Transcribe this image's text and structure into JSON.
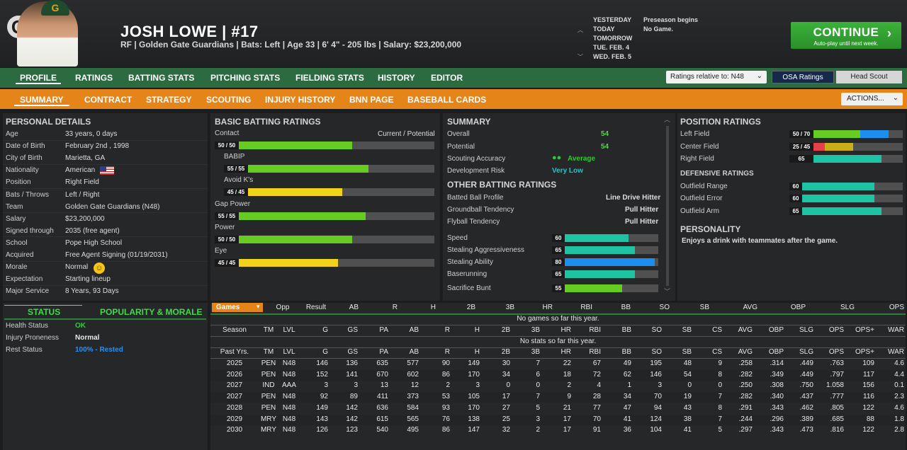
{
  "header": {
    "logo": "G",
    "cap_logo": "G",
    "name": "JOSH LOWE  |  #17",
    "info": "RF | Golden Gate Guardians  |  Bats: Left  |  Age 33  |  6' 4\"  - 205 lbs  |  Salary: $23,200,000"
  },
  "calendar": {
    "dates": [
      "YESTERDAY",
      "TODAY",
      "TOMORROW",
      "TUE. FEB. 4",
      "WED. FEB. 5"
    ],
    "events": [
      "Preseason begins",
      "No Game."
    ]
  },
  "continue": {
    "label": "CONTINUE",
    "sub": "Auto-play until next week."
  },
  "nav1": [
    "PROFILE",
    "RATINGS",
    "BATTING STATS",
    "PITCHING STATS",
    "FIELDING STATS",
    "HISTORY",
    "EDITOR"
  ],
  "ratings_relative": "Ratings relative to: N48",
  "osa": "OSA Ratings",
  "head_scout": "Head Scout",
  "nav2": [
    "SUMMARY",
    "CONTRACT",
    "STRATEGY",
    "SCOUTING",
    "INJURY HISTORY",
    "BNN PAGE",
    "BASEBALL CARDS"
  ],
  "actions": "ACTIONS...",
  "personal": {
    "title": "PERSONAL DETAILS",
    "rows": [
      [
        "Age",
        "33 years, 0 days"
      ],
      [
        "Date of Birth",
        "February 2nd , 1998"
      ],
      [
        "City of Birth",
        "Marietta, GA"
      ],
      [
        "Nationality",
        "American"
      ],
      [
        "Position",
        "Right Field"
      ],
      [
        "Bats / Throws",
        "Left / Right"
      ],
      [
        "Team",
        "Golden Gate Guardians (N48)"
      ],
      [
        "Salary",
        "$23,200,000"
      ],
      [
        "Signed through",
        "2035 (free agent)"
      ],
      [
        "School",
        "Pope High School"
      ],
      [
        "Acquired",
        "Free Agent Signing (01/19/2031)"
      ],
      [
        "Morale",
        "Normal"
      ],
      [
        "Expectation",
        "Starting lineup"
      ],
      [
        "Major Service",
        "8 Years, 93 Days"
      ]
    ]
  },
  "status": {
    "tab1": "STATUS",
    "tab2": "POPULARITY & MORALE",
    "rows": [
      [
        "Health Status",
        "OK",
        "#2bd03b"
      ],
      [
        "Injury Proneness",
        "Normal",
        "#e8e8e8"
      ],
      [
        "Rest Status",
        "100% - Rested",
        "#2b8ff0"
      ]
    ]
  },
  "batting": {
    "title": "BASIC BATTING RATINGS",
    "cp": "Current / Potential",
    "rows": [
      {
        "label": "Contact",
        "tag": "50 / 50",
        "value": 50,
        "color": "green",
        "indent": 0
      },
      {
        "label": "BABIP",
        "tag": "55 / 55",
        "value": 55,
        "color": "green",
        "indent": 1
      },
      {
        "label": "Avoid K's",
        "tag": "45 / 45",
        "value": 45,
        "color": "yellow",
        "indent": 1
      },
      {
        "label": "Gap Power",
        "tag": "55 / 55",
        "value": 55,
        "color": "green",
        "indent": 0
      },
      {
        "label": "Power",
        "tag": "50 / 50",
        "value": 50,
        "color": "green",
        "indent": 0
      },
      {
        "label": "Eye",
        "tag": "45 / 45",
        "value": 45,
        "color": "yellow",
        "indent": 0
      }
    ]
  },
  "summary": {
    "title": "SUMMARY",
    "rows": [
      [
        "Overall",
        "54"
      ],
      [
        "Potential",
        "54"
      ]
    ],
    "scout_label": "Scouting Accuracy",
    "scout_val": "Average",
    "dev_label": "Development Risk",
    "dev_val": "Very Low",
    "other_title": "OTHER BATTING RATINGS",
    "other": [
      [
        "Batted Ball Profile",
        "Line Drive Hitter"
      ],
      [
        "Groundball Tendency",
        "Pull Hitter"
      ],
      [
        "Flyball Tendency",
        "Pull Hitter"
      ]
    ],
    "speed": [
      {
        "label": "Speed",
        "value": 60,
        "color": "teal"
      },
      {
        "label": "Stealing Aggressiveness",
        "value": 65,
        "color": "teal"
      },
      {
        "label": "Stealing Ability",
        "value": 80,
        "color": "blue"
      },
      {
        "label": "Baserunning",
        "value": 65,
        "color": "teal"
      },
      {
        "label": "Sacrifice Bunt",
        "value": 55,
        "color": "green"
      }
    ]
  },
  "position": {
    "title": "POSITION RATINGS",
    "rows": [
      {
        "label": "Left Field",
        "tag": "50 / 70",
        "cur": 50,
        "pot": 70,
        "c1": "green",
        "c2": "blue"
      },
      {
        "label": "Center Field",
        "tag": "25 / 45",
        "cur": 25,
        "pot": 45,
        "c1": "red",
        "c2": "gold"
      },
      {
        "label": "Right Field",
        "tag": "65",
        "cur": 65,
        "pot": 65,
        "c1": "teal",
        "c2": "teal"
      }
    ],
    "def_title": "DEFENSIVE RATINGS",
    "def": [
      {
        "label": "Outfield Range",
        "tag": "60",
        "value": 60
      },
      {
        "label": "Outfield Error",
        "tag": "60",
        "value": 60
      },
      {
        "label": "Outfield Arm",
        "tag": "65",
        "value": 65
      }
    ],
    "pers_title": "PERSONALITY",
    "pers": "Enjoys a drink with teammates after the game."
  },
  "games": {
    "select": "Games",
    "headers": [
      "Opp",
      "Result",
      "AB",
      "R",
      "H",
      "2B",
      "3B",
      "HR",
      "RBI",
      "BB",
      "SO",
      "SB",
      "AVG",
      "OBP",
      "SLG",
      "OPS"
    ],
    "empty": "No games so far this year."
  },
  "season": {
    "headers": [
      "Season",
      "TM",
      "LVL",
      "G",
      "GS",
      "PA",
      "AB",
      "R",
      "H",
      "2B",
      "3B",
      "HR",
      "RBI",
      "BB",
      "SO",
      "SB",
      "CS",
      "AVG",
      "OBP",
      "SLG",
      "OPS",
      "OPS+",
      "WAR"
    ],
    "empty": "No stats so far this year."
  },
  "past": {
    "headers": [
      "Past Yrs.",
      "TM",
      "LVL",
      "G",
      "GS",
      "PA",
      "AB",
      "R",
      "H",
      "2B",
      "3B",
      "HR",
      "RBI",
      "BB",
      "SO",
      "SB",
      "CS",
      "AVG",
      "OBP",
      "SLG",
      "OPS",
      "OPS+",
      "WAR"
    ],
    "rows": [
      [
        "2025",
        "PEN",
        "N48",
        "146",
        "136",
        "635",
        "577",
        "90",
        "149",
        "30",
        "7",
        "22",
        "67",
        "49",
        "195",
        "48",
        "9",
        ".258",
        ".314",
        ".449",
        ".763",
        "109",
        "4.6"
      ],
      [
        "2026",
        "PEN",
        "N48",
        "152",
        "141",
        "670",
        "602",
        "86",
        "170",
        "34",
        "6",
        "18",
        "72",
        "62",
        "146",
        "54",
        "8",
        ".282",
        ".349",
        ".449",
        ".797",
        "117",
        "4.4"
      ],
      [
        "2027",
        "IND",
        "AAA",
        "3",
        "3",
        "13",
        "12",
        "2",
        "3",
        "0",
        "0",
        "2",
        "4",
        "1",
        "3",
        "0",
        "0",
        ".250",
        ".308",
        ".750",
        "1.058",
        "156",
        "0.1"
      ],
      [
        "2027",
        "PEN",
        "N48",
        "92",
        "89",
        "411",
        "373",
        "53",
        "105",
        "17",
        "7",
        "9",
        "28",
        "34",
        "70",
        "19",
        "7",
        ".282",
        ".340",
        ".437",
        ".777",
        "116",
        "2.3"
      ],
      [
        "2028",
        "PEN",
        "N48",
        "149",
        "142",
        "636",
        "584",
        "93",
        "170",
        "27",
        "5",
        "21",
        "77",
        "47",
        "94",
        "43",
        "8",
        ".291",
        ".343",
        ".462",
        ".805",
        "122",
        "4.6"
      ],
      [
        "2029",
        "MRY",
        "N48",
        "143",
        "142",
        "615",
        "565",
        "76",
        "138",
        "25",
        "3",
        "17",
        "70",
        "41",
        "124",
        "38",
        "7",
        ".244",
        ".296",
        ".389",
        ".685",
        "88",
        "1.8"
      ],
      [
        "2030",
        "MRY",
        "N48",
        "126",
        "123",
        "540",
        "495",
        "86",
        "147",
        "32",
        "2",
        "17",
        "91",
        "36",
        "104",
        "41",
        "5",
        ".297",
        ".343",
        ".473",
        ".816",
        "122",
        "2.8"
      ]
    ]
  }
}
